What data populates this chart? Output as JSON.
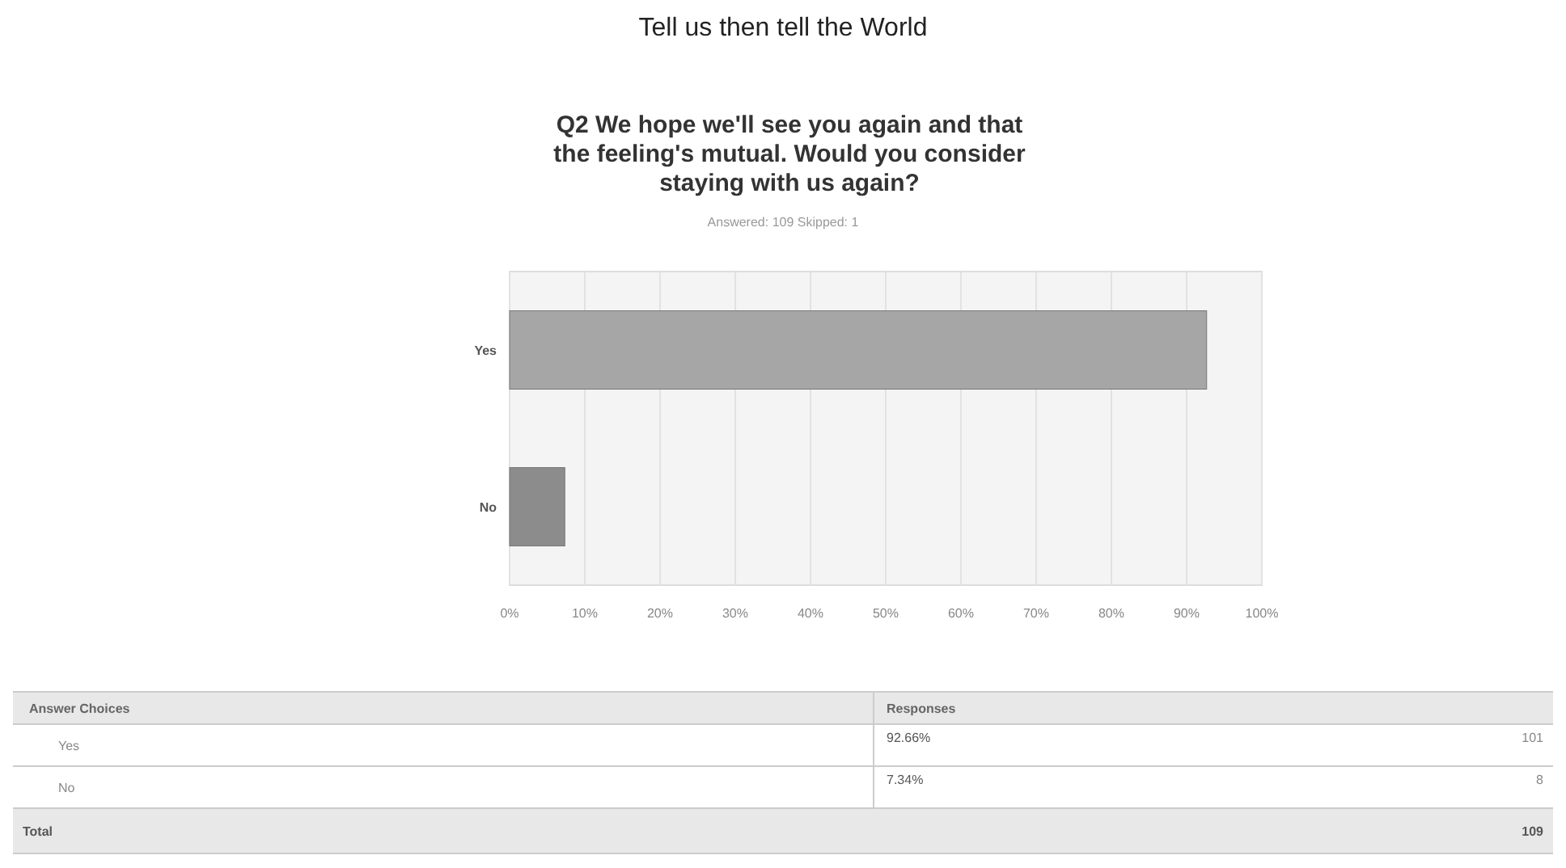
{
  "chart_data": {
    "type": "bar",
    "orientation": "horizontal",
    "title": "Tell us then tell the World",
    "subtitle": "Q2 We hope we'll see you again and that the feeling's mutual. Would you consider staying with us again?",
    "categories": [
      "Yes",
      "No"
    ],
    "values": [
      92.66,
      7.34
    ],
    "colors": [
      "#a6a6a6",
      "#8c8c8c"
    ],
    "xlim": [
      0,
      100
    ],
    "xticks": [
      {
        "value": 0,
        "label": "0%"
      },
      {
        "value": 10,
        "label": "10%"
      },
      {
        "value": 20,
        "label": "20%"
      },
      {
        "value": 30,
        "label": "30%"
      },
      {
        "value": 40,
        "label": "40%"
      },
      {
        "value": 50,
        "label": "50%"
      },
      {
        "value": 60,
        "label": "60%"
      },
      {
        "value": 70,
        "label": "70%"
      },
      {
        "value": 80,
        "label": "80%"
      },
      {
        "value": 90,
        "label": "90%"
      },
      {
        "value": 100,
        "label": "100%"
      }
    ],
    "grid": "x",
    "annotations": [
      "Answered: 109    Skipped: 1",
      "Answer Choices",
      "Responses",
      "101",
      "8",
      "Total",
      "109",
      "92.66%",
      "7.34%"
    ]
  }
}
